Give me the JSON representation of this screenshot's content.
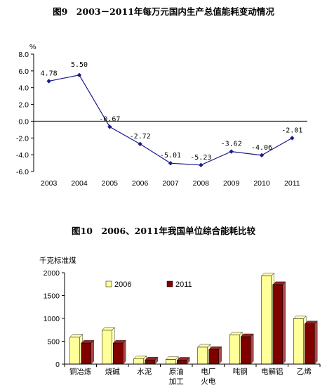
{
  "chart_data": [
    {
      "type": "line",
      "title": "图9　2003－2011年每万元国内生产总值能耗变动情况",
      "ylabel": "%",
      "ylim": [
        -6.0,
        8.0
      ],
      "yticks": [
        "8.0",
        "6.0",
        "4.0",
        "2.0",
        "0.0",
        "-2.0",
        "-4.0",
        "-6.0"
      ],
      "categories": [
        "2003",
        "2004",
        "2005",
        "2006",
        "2007",
        "2008",
        "2009",
        "2010",
        "2011"
      ],
      "values": [
        4.78,
        5.5,
        -0.67,
        -2.72,
        -5.01,
        -5.23,
        -3.62,
        -4.06,
        -2.01
      ],
      "data_labels": [
        "4.78",
        "5.50",
        "-0.67",
        "-2.72",
        "-5.01",
        "-5.23",
        "-3.62",
        "-4.06",
        "-2.01"
      ],
      "grid": false,
      "series_color": "#1a1a8c"
    },
    {
      "type": "bar",
      "title": "图10　2006、2011年我国单位综合能耗比较",
      "ylabel": "千克标准煤",
      "ylim": [
        0,
        2000
      ],
      "yticks": [
        "2000",
        "1500",
        "1000",
        "500",
        "0"
      ],
      "categories": [
        [
          "铜冶炼"
        ],
        [
          "烧碱"
        ],
        [
          "水泥"
        ],
        [
          "原油",
          "加工"
        ],
        [
          "电厂",
          "火电"
        ],
        [
          "吨钢"
        ],
        [
          "电解铝"
        ],
        [
          "乙烯"
        ]
      ],
      "series": [
        {
          "name": "2006",
          "values": [
            590,
            740,
            120,
            100,
            370,
            640,
            1930,
            990
          ],
          "color": "#ffff99"
        },
        {
          "name": "2011",
          "values": [
            460,
            460,
            90,
            85,
            320,
            600,
            1740,
            880
          ],
          "color": "#800000"
        }
      ],
      "legend_position": "top-left",
      "grid": false
    }
  ]
}
